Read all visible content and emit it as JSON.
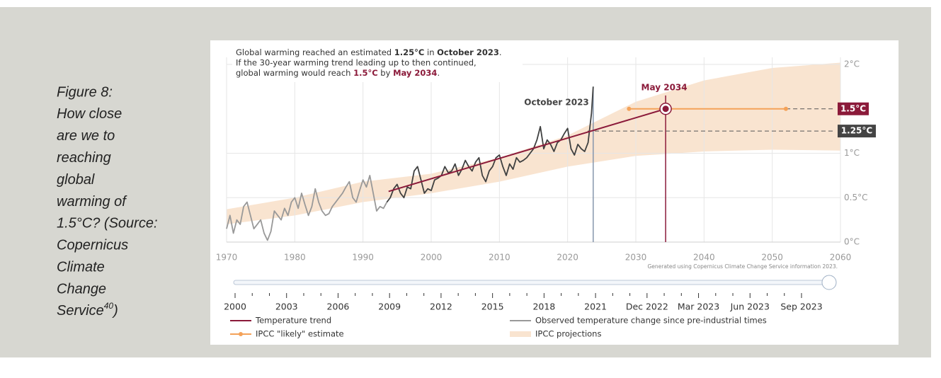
{
  "caption": {
    "lines": [
      "Figure 8:",
      "How close",
      "are we to",
      "reaching",
      "global",
      "warming of",
      "1.5°C? (Source:",
      "Copernicus",
      "Climate",
      "Change"
    ],
    "last": {
      "text": "Service",
      "sup": "40",
      "end": ")"
    }
  },
  "chart_data": {
    "type": "line",
    "annotation": [
      {
        "segments": [
          "Global warming reached an estimated ",
          "1.25°C",
          " in ",
          "October 2023",
          "."
        ],
        "emphasis_color": "#333333"
      },
      {
        "segments": [
          "If the 30-year warming trend leading up to then continued,"
        ],
        "emphasis_color": "#333333"
      },
      {
        "segments": [
          "global warming would reach ",
          "1.5°C",
          " by ",
          "May 2034",
          "."
        ],
        "emphasis_color": "#8b1a3a"
      }
    ],
    "credit": "Generated using Copernicus Climate Change Service information 2023.",
    "xlim": [
      1970,
      2060
    ],
    "xticks": [
      1970,
      1980,
      1990,
      2000,
      2010,
      2020,
      2030,
      2040,
      2050,
      2060
    ],
    "ylim": [
      0,
      2
    ],
    "yticks": [
      {
        "value": 0,
        "label": "0°C"
      },
      {
        "value": 0.5,
        "label": "0.5°C"
      },
      {
        "value": 1,
        "label": "1°C"
      },
      {
        "value": 2,
        "label": "2°C"
      }
    ],
    "grid": true,
    "band": {
      "name": "IPCC projections",
      "color": "#f9e4d0",
      "x": [
        1970,
        1980,
        1990,
        2000,
        2010,
        2020,
        2030,
        2040,
        2050,
        2060
      ],
      "lower": [
        0.2,
        0.3,
        0.45,
        0.55,
        0.68,
        0.85,
        0.97,
        1.02,
        1.04,
        1.03
      ],
      "upper": [
        0.37,
        0.5,
        0.68,
        0.77,
        0.95,
        1.2,
        1.58,
        1.82,
        1.96,
        2.02
      ]
    },
    "series": [
      {
        "name": "Temperature trend",
        "color": "#8b1a3a",
        "x": [
          1993.75,
          2034.37
        ],
        "values": [
          0.57,
          1.5
        ]
      },
      {
        "name": "Observed temperature change since pre-industrial times",
        "color": "#999999",
        "recent_color": "#3f4040",
        "recent_from": 1993.5,
        "x": [
          1970,
          1970.5,
          1971,
          1971.5,
          1972,
          1972.5,
          1973,
          1973.5,
          1974,
          1974.5,
          1975,
          1975.5,
          1976,
          1976.5,
          1977,
          1977.5,
          1978,
          1978.5,
          1979,
          1979.5,
          1980,
          1980.5,
          1981,
          1981.5,
          1982,
          1982.5,
          1983,
          1983.5,
          1984,
          1984.5,
          1985,
          1985.5,
          1986,
          1986.5,
          1987,
          1987.5,
          1988,
          1988.5,
          1989,
          1989.5,
          1990,
          1990.5,
          1991,
          1991.5,
          1992,
          1992.5,
          1993,
          1993.5,
          1994,
          1994.5,
          1995,
          1995.5,
          1996,
          1996.5,
          1997,
          1997.5,
          1998,
          1998.5,
          1999,
          1999.5,
          2000,
          2000.5,
          2001,
          2001.5,
          2002,
          2002.5,
          2003,
          2003.5,
          2004,
          2004.5,
          2005,
          2005.5,
          2006,
          2006.5,
          2007,
          2007.5,
          2008,
          2008.5,
          2009,
          2009.5,
          2010,
          2010.5,
          2011,
          2011.5,
          2012,
          2012.5,
          2013,
          2013.5,
          2014,
          2014.5,
          2015,
          2015.5,
          2016,
          2016.5,
          2017,
          2017.5,
          2018,
          2018.5,
          2019,
          2019.5,
          2020,
          2020.5,
          2021,
          2021.5,
          2022,
          2022.5,
          2023,
          2023.5,
          2023.75
        ],
        "values": [
          0.15,
          0.3,
          0.1,
          0.25,
          0.2,
          0.4,
          0.45,
          0.3,
          0.15,
          0.2,
          0.25,
          0.1,
          0.02,
          0.12,
          0.35,
          0.3,
          0.25,
          0.38,
          0.3,
          0.45,
          0.5,
          0.38,
          0.55,
          0.42,
          0.3,
          0.4,
          0.6,
          0.45,
          0.35,
          0.3,
          0.32,
          0.4,
          0.45,
          0.5,
          0.55,
          0.62,
          0.68,
          0.5,
          0.45,
          0.58,
          0.7,
          0.62,
          0.75,
          0.55,
          0.35,
          0.4,
          0.38,
          0.45,
          0.5,
          0.6,
          0.65,
          0.55,
          0.5,
          0.62,
          0.6,
          0.8,
          0.85,
          0.7,
          0.55,
          0.6,
          0.58,
          0.7,
          0.72,
          0.75,
          0.85,
          0.78,
          0.8,
          0.88,
          0.75,
          0.82,
          0.92,
          0.85,
          0.8,
          0.9,
          0.95,
          0.75,
          0.68,
          0.8,
          0.85,
          0.95,
          0.98,
          0.85,
          0.75,
          0.88,
          0.82,
          0.95,
          0.9,
          0.92,
          0.95,
          1.0,
          1.05,
          1.15,
          1.3,
          1.05,
          1.15,
          1.1,
          1.02,
          1.12,
          1.15,
          1.22,
          1.28,
          1.05,
          0.98,
          1.1,
          1.05,
          1.02,
          1.12,
          1.45,
          1.75
        ]
      },
      {
        "name": "IPCC \"likely\" estimate",
        "color": "#f4a259",
        "x": [
          2029,
          2052
        ],
        "values": [
          1.5,
          1.5
        ]
      }
    ],
    "markers": [
      {
        "label": "October 2023",
        "x": 2023.75,
        "top": 1.75,
        "color": "#8596ad"
      },
      {
        "label": "May 2034",
        "x": 2034.37,
        "top": 1.65,
        "color": "#8b1a3a"
      }
    ],
    "reference_lines": [
      {
        "value": 1.5,
        "label": "1.5°C",
        "color": "#8b1a3a"
      },
      {
        "value": 1.25,
        "label": "1.25°C",
        "color": "#444444"
      }
    ],
    "slider_labels": [
      "2000",
      "2003",
      "2006",
      "2009",
      "2012",
      "2015",
      "2018",
      "2021",
      "Dec 2022",
      "Mar 2023",
      "Jun 2023",
      "Sep 2023"
    ]
  }
}
